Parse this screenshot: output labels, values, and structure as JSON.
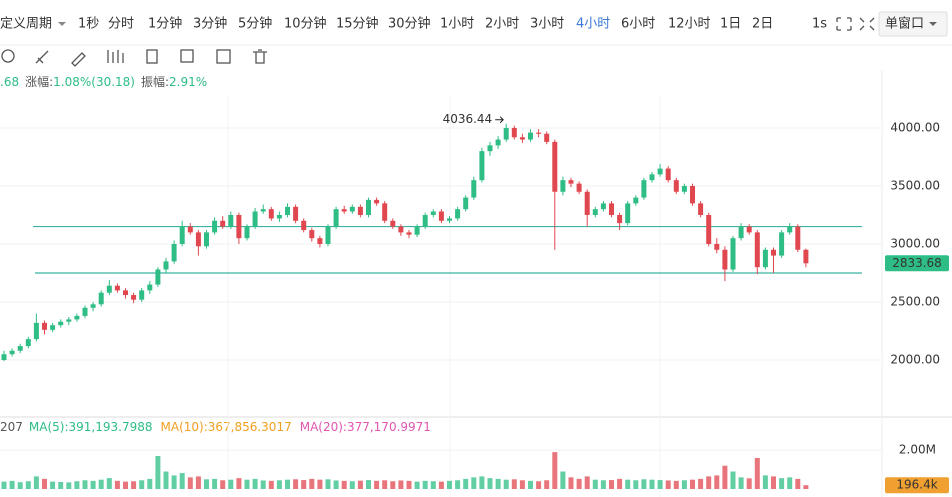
{
  "toolbar": {
    "period_menu": "定义周期",
    "intervals": [
      "1秒",
      "分时",
      "1分钟",
      "3分钟",
      "5分钟",
      "10分钟",
      "15分钟",
      "30分钟",
      "1小时",
      "2小时",
      "3小时",
      "4小时",
      "6小时",
      "12小时",
      "1日",
      "2日"
    ],
    "active": 11,
    "refresh": "1s",
    "window_mode": "单窗口"
  },
  "info": {
    "close_tail": ".68",
    "change_label": "涨幅:",
    "change": "1.08%(30.18)",
    "amplitude_label": "振幅:",
    "amplitude": "2.91%"
  },
  "volume_info": {
    "vol_tail": "207",
    "ma5": "MA(5):391,193.7988",
    "ma10": "MA(10):367,856.3017",
    "ma20": "MA(20):377,170.9971"
  },
  "chart_data": {
    "type": "candlestick",
    "up_color": "#2ebd85",
    "down_color": "#e0474f",
    "ylim": [
      1526,
      4284
    ],
    "yticks": [
      {
        "value": 2000,
        "label": "2000.00"
      },
      {
        "value": 2500,
        "label": "2500.00"
      },
      {
        "value": 3000,
        "label": "3000.00"
      },
      {
        "value": 3500,
        "label": "3500.00"
      },
      {
        "value": 4000,
        "label": "4000.00"
      }
    ],
    "hlines": [
      3150,
      2750
    ],
    "hline_color": "#3bb3a0",
    "max_index": 62,
    "last_price": 2833.68,
    "candles": [
      [
        2000,
        2080,
        1990,
        2050
      ],
      [
        2050,
        2100,
        2030,
        2080
      ],
      [
        2080,
        2140,
        2060,
        2120
      ],
      [
        2120,
        2200,
        2100,
        2180
      ],
      [
        2180,
        2400,
        2160,
        2320
      ],
      [
        2320,
        2340,
        2220,
        2260
      ],
      [
        2260,
        2320,
        2240,
        2300
      ],
      [
        2300,
        2350,
        2280,
        2330
      ],
      [
        2330,
        2370,
        2300,
        2350
      ],
      [
        2350,
        2400,
        2330,
        2380
      ],
      [
        2380,
        2470,
        2360,
        2450
      ],
      [
        2450,
        2500,
        2420,
        2480
      ],
      [
        2480,
        2600,
        2460,
        2580
      ],
      [
        2580,
        2690,
        2560,
        2640
      ],
      [
        2640,
        2660,
        2580,
        2600
      ],
      [
        2600,
        2620,
        2530,
        2560
      ],
      [
        2560,
        2580,
        2490,
        2520
      ],
      [
        2520,
        2620,
        2500,
        2600
      ],
      [
        2600,
        2680,
        2570,
        2650
      ],
      [
        2650,
        2800,
        2630,
        2780
      ],
      [
        2780,
        2880,
        2750,
        2850
      ],
      [
        2850,
        3030,
        2830,
        3000
      ],
      [
        3000,
        3200,
        2980,
        3150
      ],
      [
        3150,
        3180,
        3080,
        3100
      ],
      [
        3100,
        3120,
        2900,
        2980
      ],
      [
        2980,
        3120,
        2960,
        3100
      ],
      [
        3100,
        3230,
        3080,
        3200
      ],
      [
        3200,
        3240,
        3130,
        3150
      ],
      [
        3150,
        3280,
        3130,
        3250
      ],
      [
        3250,
        3270,
        3000,
        3050
      ],
      [
        3050,
        3170,
        3030,
        3150
      ],
      [
        3150,
        3310,
        3130,
        3280
      ],
      [
        3280,
        3340,
        3260,
        3300
      ],
      [
        3300,
        3320,
        3200,
        3220
      ],
      [
        3220,
        3280,
        3190,
        3250
      ],
      [
        3250,
        3350,
        3230,
        3320
      ],
      [
        3320,
        3340,
        3180,
        3200
      ],
      [
        3200,
        3220,
        3100,
        3120
      ],
      [
        3120,
        3140,
        3020,
        3050
      ],
      [
        3050,
        3070,
        2970,
        3000
      ],
      [
        3000,
        3170,
        2980,
        3150
      ],
      [
        3150,
        3320,
        3130,
        3300
      ],
      [
        3300,
        3330,
        3260,
        3280
      ],
      [
        3280,
        3340,
        3260,
        3320
      ],
      [
        3320,
        3340,
        3230,
        3250
      ],
      [
        3250,
        3400,
        3230,
        3380
      ],
      [
        3380,
        3400,
        3330,
        3350
      ],
      [
        3350,
        3370,
        3180,
        3200
      ],
      [
        3200,
        3220,
        3130,
        3150
      ],
      [
        3150,
        3170,
        3070,
        3100
      ],
      [
        3100,
        3120,
        3050,
        3080
      ],
      [
        3080,
        3170,
        3060,
        3150
      ],
      [
        3150,
        3270,
        3130,
        3250
      ],
      [
        3250,
        3300,
        3230,
        3280
      ],
      [
        3280,
        3300,
        3180,
        3200
      ],
      [
        3200,
        3240,
        3180,
        3220
      ],
      [
        3220,
        3320,
        3200,
        3300
      ],
      [
        3300,
        3420,
        3280,
        3400
      ],
      [
        3400,
        3580,
        3380,
        3550
      ],
      [
        3550,
        3830,
        3530,
        3800
      ],
      [
        3800,
        3880,
        3760,
        3850
      ],
      [
        3850,
        3930,
        3820,
        3900
      ],
      [
        3900,
        4036.44,
        3880,
        4000
      ],
      [
        4000,
        4020,
        3900,
        3920
      ],
      [
        3920,
        3950,
        3870,
        3900
      ],
      [
        3900,
        3990,
        3880,
        3960
      ],
      [
        3960,
        3990,
        3920,
        3950
      ],
      [
        3950,
        3970,
        3860,
        3880
      ],
      [
        3880,
        3900,
        2950,
        3450
      ],
      [
        3450,
        3580,
        3420,
        3550
      ],
      [
        3550,
        3570,
        3490,
        3520
      ],
      [
        3520,
        3540,
        3430,
        3450
      ],
      [
        3450,
        3470,
        3150,
        3250
      ],
      [
        3250,
        3320,
        3230,
        3300
      ],
      [
        3300,
        3370,
        3280,
        3350
      ],
      [
        3350,
        3370,
        3230,
        3250
      ],
      [
        3250,
        3270,
        3120,
        3180
      ],
      [
        3180,
        3370,
        3160,
        3350
      ],
      [
        3350,
        3420,
        3330,
        3400
      ],
      [
        3400,
        3570,
        3380,
        3550
      ],
      [
        3550,
        3620,
        3530,
        3600
      ],
      [
        3600,
        3690,
        3580,
        3650
      ],
      [
        3650,
        3670,
        3530,
        3550
      ],
      [
        3550,
        3570,
        3430,
        3450
      ],
      [
        3450,
        3520,
        3430,
        3500
      ],
      [
        3500,
        3520,
        3330,
        3350
      ],
      [
        3350,
        3370,
        3230,
        3250
      ],
      [
        3250,
        3270,
        2980,
        3000
      ],
      [
        3000,
        3050,
        2920,
        2950
      ],
      [
        2950,
        2980,
        2680,
        2780
      ],
      [
        2780,
        3070,
        2760,
        3050
      ],
      [
        3050,
        3180,
        3030,
        3150
      ],
      [
        3150,
        3170,
        3080,
        3100
      ],
      [
        3100,
        3120,
        2740,
        2800
      ],
      [
        2800,
        2970,
        2780,
        2950
      ],
      [
        2950,
        2970,
        2750,
        2900
      ],
      [
        2900,
        3120,
        2880,
        3100
      ],
      [
        3100,
        3180,
        3080,
        3150
      ],
      [
        3150,
        3170,
        2930,
        2950
      ],
      [
        2950,
        2960,
        2800,
        2833.68
      ]
    ],
    "volume_ylim": [
      0,
      3040000
    ],
    "volume_yticks": [
      {
        "value": 2000000,
        "label": "2.00M"
      }
    ],
    "last_volume": {
      "value": 196400,
      "label": "196.4k"
    },
    "volumes": [
      380000,
      420000,
      350000,
      400000,
      650000,
      520000,
      380000,
      360000,
      340000,
      400000,
      450000,
      420000,
      480000,
      560000,
      420000,
      380000,
      400000,
      450000,
      520000,
      1700000,
      900000,
      700000,
      820000,
      600000,
      650000,
      500000,
      520000,
      450000,
      480000,
      560000,
      480000,
      520000,
      440000,
      420000,
      450000,
      480000,
      500000,
      460000,
      520000,
      480000,
      500000,
      440000,
      420000,
      400000,
      430000,
      460000,
      420000,
      450000,
      400000,
      440000,
      420000,
      380000,
      420000,
      400000,
      380000,
      420000,
      450000,
      520000,
      600000,
      650000,
      560000,
      520000,
      480000,
      500000,
      450000,
      420000,
      400000,
      450000,
      1900000,
      900000,
      600000,
      520000,
      650000,
      480000,
      450000,
      460000,
      520000,
      480000,
      450000,
      500000,
      480000,
      460000,
      440000,
      420000,
      450000,
      480000,
      520000,
      650000,
      700000,
      1200000,
      900000,
      600000,
      550000,
      1600000,
      700000,
      650000,
      560000,
      600000,
      520000,
      196400
    ]
  }
}
